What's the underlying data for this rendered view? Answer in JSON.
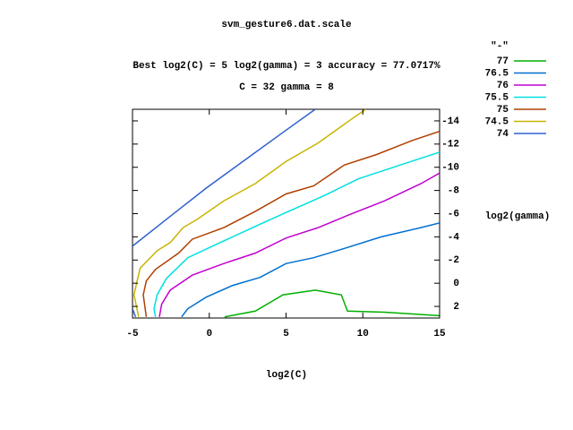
{
  "chart_data": {
    "type": "contour",
    "title": "svm_gesture6.dat.scale",
    "subtitle": "Best log2(C) = 5  log2(gamma) = 3  accuracy = 77.0717%",
    "annotation": "C = 32  gamma = 8",
    "legend_title": "\"-\"",
    "xlabel": "log2(C)",
    "ylabel": "log2(gamma)",
    "xlim": [
      -5,
      15
    ],
    "xticks": [
      -5,
      0,
      5,
      10,
      15
    ],
    "ylim": [
      -15,
      3
    ],
    "yticks": [
      -14,
      -12,
      -10,
      -8,
      -6,
      -4,
      -2,
      0,
      2
    ],
    "y_reversed": true,
    "series": [
      {
        "name": "77",
        "color": "#00b000",
        "x": [
          1,
          3,
          4.8,
          6.9,
          8.6,
          9,
          11.4,
          15
        ],
        "values": [
          2.9,
          2.4,
          1,
          0.6,
          1,
          2.4,
          2.5,
          2.8
        ]
      },
      {
        "name": "76.5",
        "color": "#0070d0",
        "x": [
          -1.8,
          -1.4,
          -0.2,
          1.5,
          3.3,
          5,
          6.8,
          8.8,
          11.2,
          13.8,
          15
        ],
        "values": [
          2.9,
          2.2,
          1.2,
          0.2,
          -0.5,
          -1.7,
          -2.2,
          -3,
          -4,
          -4.8,
          -5.2
        ]
      },
      {
        "name": "76",
        "color": "#c000d0",
        "x": [
          -3.25,
          -3.1,
          -2.55,
          -1.1,
          0.95,
          3,
          5,
          7.1,
          9.1,
          11.4,
          13.8,
          15
        ],
        "values": [
          2.9,
          1.8,
          0.6,
          -0.7,
          -1.7,
          -2.6,
          -3.9,
          -4.8,
          -5.9,
          -7.1,
          -8.6,
          -9.5
        ]
      },
      {
        "name": "75.5",
        "color": "#00e0e0",
        "x": [
          -3.5,
          -3.6,
          -3.4,
          -2.8,
          -1.4,
          0.7,
          3,
          5,
          7.4,
          9.7,
          12,
          15
        ],
        "values": [
          2.9,
          2.2,
          1,
          -0.4,
          -2.2,
          -3.5,
          -4.9,
          -6.1,
          -7.5,
          -9,
          -10,
          -11.3
        ]
      },
      {
        "name": "75",
        "color": "#b04000",
        "x": [
          -4.1,
          -4.3,
          -4.1,
          -3.5,
          -2,
          -1.1,
          0.95,
          3,
          5,
          6.8,
          8.8,
          10.9,
          13.2,
          15
        ],
        "values": [
          2.9,
          1,
          -0.2,
          -1.2,
          -2.6,
          -3.8,
          -4.8,
          -6.2,
          -7.7,
          -8.4,
          -10.2,
          -11.1,
          -12.3,
          -13.1
        ]
      },
      {
        "name": "74.5",
        "color": "#c8b400",
        "x": [
          -4.6,
          -4.9,
          -4.7,
          -4.5,
          -3.4,
          -2.55,
          -1.7,
          -0.8,
          0.95,
          3,
          5,
          7.1,
          9.1,
          10.2
        ],
        "values": [
          2.9,
          1,
          -0.2,
          -1.3,
          -2.8,
          -3.5,
          -4.8,
          -5.5,
          -7.1,
          -8.6,
          -10.5,
          -12.1,
          -14,
          -15
        ]
      },
      {
        "name": "74",
        "color": "#3060d0",
        "x": [
          -4.8,
          -5,
          null,
          -5,
          -2.8,
          -0.2,
          2.4,
          5,
          6.9
        ],
        "values": [
          2.9,
          2.2,
          null,
          -3.2,
          -5.5,
          -8.2,
          -10.7,
          -13.2,
          -15
        ]
      }
    ]
  }
}
